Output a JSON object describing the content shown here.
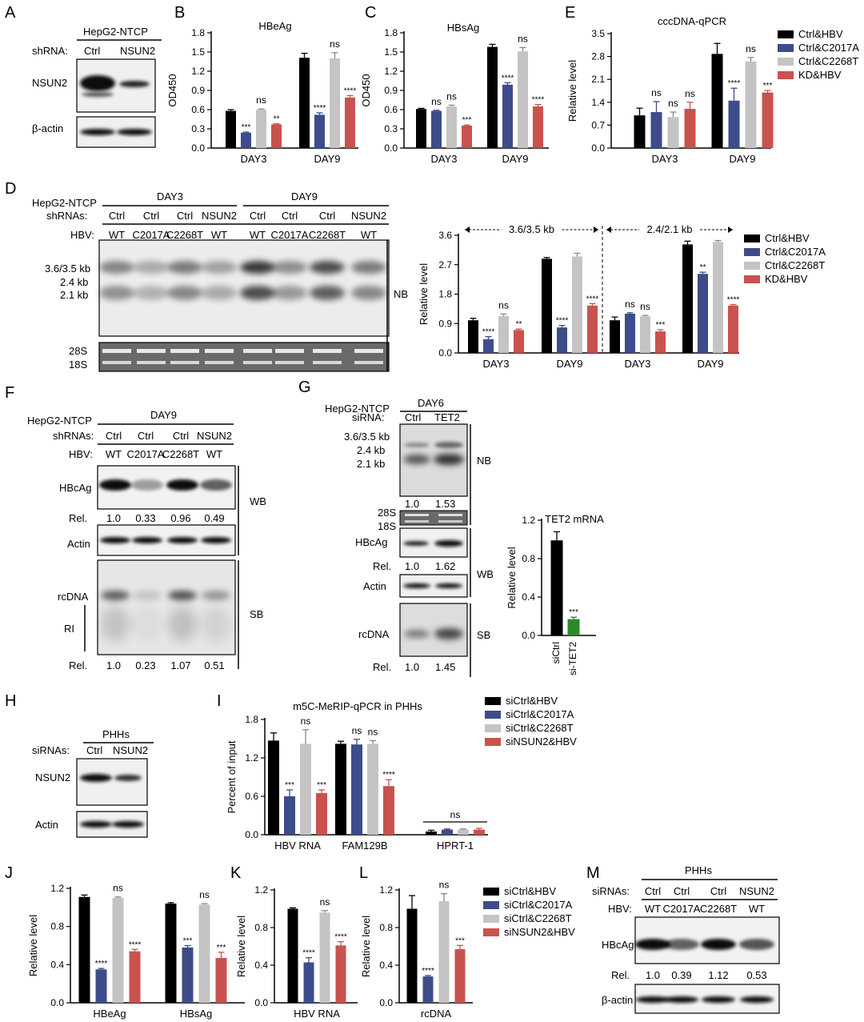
{
  "colors": {
    "black": "#000000",
    "blue": "#3d4c8a",
    "gray": "#c4c4c4",
    "red": "#c9524e",
    "green": "#2a8a2a"
  },
  "panels": {
    "A": {
      "letter": "A",
      "cell_line": "HepG2-NTCP",
      "row_label": "shRNA:",
      "lanes": [
        "Ctrl",
        "NSUN2"
      ],
      "bands": [
        "NSUN2",
        "β-actin"
      ]
    },
    "D": {
      "letter": "D",
      "cell_line": "HepG2-NTCP",
      "row1_label": "shRNAs:",
      "row2_label": "HBV:",
      "days": [
        "DAY3",
        "DAY9"
      ],
      "shrna": [
        "Ctrl",
        "Ctrl",
        "Ctrl",
        "NSUN2",
        "Ctrl",
        "Ctrl",
        "Ctrl",
        "NSUN2"
      ],
      "hbv": [
        "WT",
        "C2017A",
        "C2268T",
        "WT",
        "WT",
        "C2017A",
        "C2268T",
        "WT"
      ],
      "band_labels": [
        "3.6/3.5 kb",
        "2.4 kb",
        "2.1 kb"
      ],
      "rrna": [
        "28S",
        "18S"
      ],
      "method": "NB"
    },
    "F": {
      "letter": "F",
      "cell_line": "HepG2-NTCP",
      "day": "DAY9",
      "row1_label": "shRNAs:",
      "row2_label": "HBV:",
      "shrna": [
        "Ctrl",
        "Ctrl",
        "Ctrl",
        "NSUN2"
      ],
      "hbv": [
        "WT",
        "C2017A",
        "C2268T",
        "WT"
      ],
      "hbcag": "HBcAg",
      "actin": "Actin",
      "rcdna": "rcDNA",
      "ri": "RI",
      "rel_label": "Rel.",
      "rel_wb": [
        "1.0",
        "0.33",
        "0.96",
        "0.49"
      ],
      "rel_sb": [
        "1.0",
        "0.23",
        "1.07",
        "0.51"
      ],
      "wb": "WB",
      "sb": "SB"
    },
    "G": {
      "letter": "G",
      "cell_line": "HepG2-NTCP",
      "day": "DAY6",
      "row_label": "siRNA:",
      "lanes": [
        "Ctrl",
        "TET2"
      ],
      "band_labels": [
        "3.6/3.5 kb",
        "2.4 kb",
        "2.1 kb"
      ],
      "nb": "NB",
      "rel_nb": [
        "1.0",
        "1.53"
      ],
      "rrna": [
        "28S",
        "18S"
      ],
      "hbcag": "HBcAg",
      "rel_label": "Rel.",
      "rel_wb": [
        "1.0",
        "1.62"
      ],
      "wb": "WB",
      "actin": "Actin",
      "rcdna": "rcDNA",
      "sb": "SB",
      "rel_sb": [
        "1.0",
        "1.45"
      ]
    },
    "H": {
      "letter": "H",
      "cell_line": "PHHs",
      "row_label": "siRNAs:",
      "lanes": [
        "Ctrl",
        "NSUN2"
      ],
      "bands": [
        "NSUN2",
        "Actin"
      ]
    },
    "M": {
      "letter": "M",
      "cell_line": "PHHs",
      "row1_label": "siRNAs:",
      "row2_label": "HBV:",
      "sirna": [
        "Ctrl",
        "Ctrl",
        "Ctrl",
        "NSUN2"
      ],
      "hbv": [
        "WT",
        "C2017A",
        "C2268T",
        "WT"
      ],
      "hbcag": "HBcAg",
      "rel_label": "Rel.",
      "rel": [
        "1.0",
        "0.39",
        "1.12",
        "0.53"
      ],
      "actin": "β-actin"
    }
  },
  "legends": {
    "shrna": [
      "Ctrl&HBV",
      "Ctrl&C2017A",
      "Ctrl&C2268T",
      "KD&HBV"
    ],
    "sirna": [
      "siCtrl&HBV",
      "siCtrl&C2017A",
      "siCtrl&C2268T",
      "siNSUN2&HBV"
    ]
  },
  "chart_data": [
    {
      "id": "B",
      "type": "bar",
      "title": "HBeAg",
      "ylabel": "OD450",
      "xlabel": "",
      "ylim": [
        0,
        1.8
      ],
      "yticks": [
        "0.0",
        "0.3",
        "0.6",
        "0.9",
        "1.2",
        "1.5",
        "1.8"
      ],
      "categories": [
        "DAY3",
        "DAY9"
      ],
      "series": [
        {
          "values": [
            0.58,
            1.41
          ],
          "errors": [
            0.02,
            0.07
          ],
          "sig": [
            "",
            ""
          ]
        },
        {
          "values": [
            0.24,
            0.52
          ],
          "errors": [
            0.01,
            0.03
          ],
          "sig": [
            "***",
            "****"
          ]
        },
        {
          "values": [
            0.6,
            1.4
          ],
          "errors": [
            0.01,
            0.09
          ],
          "sig": [
            "ns",
            "ns"
          ]
        },
        {
          "values": [
            0.37,
            0.79
          ],
          "errors": [
            0.01,
            0.03
          ],
          "sig": [
            "**",
            "****"
          ]
        }
      ]
    },
    {
      "id": "C",
      "type": "bar",
      "title": "HBsAg",
      "ylabel": "OD450",
      "xlabel": "",
      "ylim": [
        0,
        1.8
      ],
      "yticks": [
        "0.0",
        "0.3",
        "0.6",
        "0.9",
        "1.2",
        "1.5",
        "1.8"
      ],
      "categories": [
        "DAY3",
        "DAY9"
      ],
      "series": [
        {
          "values": [
            0.61,
            1.58
          ],
          "errors": [
            0.01,
            0.04
          ],
          "sig": [
            "",
            ""
          ]
        },
        {
          "values": [
            0.58,
            0.99
          ],
          "errors": [
            0.01,
            0.03
          ],
          "sig": [
            "ns",
            "****"
          ]
        },
        {
          "values": [
            0.65,
            1.51
          ],
          "errors": [
            0.02,
            0.06
          ],
          "sig": [
            "ns",
            "ns"
          ]
        },
        {
          "values": [
            0.35,
            0.65
          ],
          "errors": [
            0.01,
            0.03
          ],
          "sig": [
            "***",
            "****"
          ]
        }
      ]
    },
    {
      "id": "E",
      "type": "bar",
      "title": "cccDNA-qPCR",
      "ylabel": "Relative level",
      "xlabel": "",
      "ylim": [
        0,
        3.5
      ],
      "yticks": [
        "0.0",
        "0.7",
        "1.4",
        "2.1",
        "2.8",
        "3.5"
      ],
      "categories": [
        "DAY3",
        "DAY9"
      ],
      "series": [
        {
          "values": [
            1.0,
            2.88
          ],
          "errors": [
            0.22,
            0.32
          ],
          "sig": [
            "",
            ""
          ]
        },
        {
          "values": [
            1.1,
            1.45
          ],
          "errors": [
            0.32,
            0.38
          ],
          "sig": [
            "ns",
            "****"
          ]
        },
        {
          "values": [
            0.95,
            2.65
          ],
          "errors": [
            0.15,
            0.12
          ],
          "sig": [
            "ns",
            "ns"
          ]
        },
        {
          "values": [
            1.2,
            1.7
          ],
          "errors": [
            0.2,
            0.06
          ],
          "sig": [
            "ns",
            "***"
          ]
        }
      ]
    },
    {
      "id": "D",
      "type": "bar",
      "title": "",
      "ylabel": "Relative level",
      "xlabel": "",
      "ylim": [
        0,
        3.6
      ],
      "yticks": [
        "0.0",
        "0.9",
        "1.8",
        "2.7",
        "3.6"
      ],
      "categories": [
        "DAY3",
        "DAY9",
        "DAY3",
        "DAY9"
      ],
      "group_headers": [
        "3.6/3.5 kb",
        "2.4/2.1 kb"
      ],
      "series": [
        {
          "values": [
            1.0,
            2.88,
            1.0,
            3.32
          ],
          "errors": [
            0.06,
            0.04,
            0.1,
            0.1
          ],
          "sig": [
            "",
            "",
            "",
            ""
          ]
        },
        {
          "values": [
            0.42,
            0.78,
            1.2,
            2.42
          ],
          "errors": [
            0.08,
            0.06,
            0.03,
            0.05
          ],
          "sig": [
            "****",
            "****",
            "ns",
            "**"
          ]
        },
        {
          "values": [
            1.13,
            2.95,
            1.12,
            3.4
          ],
          "errors": [
            0.06,
            0.1,
            0.03,
            0.04
          ],
          "sig": [
            "ns",
            "",
            "ns",
            ""
          ]
        },
        {
          "values": [
            0.7,
            1.45,
            0.66,
            1.45
          ],
          "errors": [
            0.03,
            0.06,
            0.05,
            0.03
          ],
          "sig": [
            "**",
            "****",
            "***",
            "****"
          ]
        }
      ]
    },
    {
      "id": "G",
      "type": "bar",
      "title": "TET2 mRNA",
      "ylabel": "Relative level",
      "xlabel": "",
      "ylim": [
        0,
        1.2
      ],
      "yticks": [
        "0.0",
        "0.4",
        "0.8",
        "1.2"
      ],
      "categories": [
        "siCtrl",
        "si-TET2"
      ],
      "series": [
        {
          "values": [
            0.99,
            0.17
          ],
          "errors": [
            0.09,
            0.02
          ],
          "sig": [
            "",
            "***"
          ]
        }
      ]
    },
    {
      "id": "I",
      "type": "bar",
      "title": "m5C-MeRIP-qPCR in PHHs",
      "ylabel": "Percent of input",
      "xlabel": "",
      "ylim": [
        0,
        1.8
      ],
      "yticks": [
        "0.0",
        "0.6",
        "1.2",
        "1.8"
      ],
      "categories": [
        "HBV RNA",
        "FAM129B",
        "HPRT-1"
      ],
      "series": [
        {
          "values": [
            1.47,
            1.42,
            0.05
          ],
          "errors": [
            0.12,
            0.04,
            0.02
          ],
          "sig": [
            "",
            "",
            ""
          ]
        },
        {
          "values": [
            0.6,
            1.41,
            0.08
          ],
          "errors": [
            0.1,
            0.08,
            0.01
          ],
          "sig": [
            "***",
            "ns",
            ""
          ]
        },
        {
          "values": [
            1.42,
            1.42,
            0.08
          ],
          "errors": [
            0.22,
            0.05,
            0.01
          ],
          "sig": [
            "ns",
            "ns",
            ""
          ]
        },
        {
          "values": [
            0.65,
            0.76,
            0.08
          ],
          "errors": [
            0.05,
            0.1,
            0.02
          ],
          "sig": [
            "***",
            "****",
            ""
          ]
        }
      ],
      "group_sig": [
        "",
        "",
        "ns"
      ]
    },
    {
      "id": "J",
      "type": "bar",
      "title": "",
      "ylabel": "Relative level",
      "xlabel": "",
      "ylim": [
        0,
        1.2
      ],
      "yticks": [
        "0.0",
        "0.4",
        "0.8",
        "1.2"
      ],
      "categories": [
        "HBeAg",
        "HBsAg"
      ],
      "series": [
        {
          "values": [
            1.11,
            1.04
          ],
          "errors": [
            0.02,
            0.01
          ],
          "sig": [
            "",
            ""
          ]
        },
        {
          "values": [
            0.35,
            0.58
          ],
          "errors": [
            0.01,
            0.02
          ],
          "sig": [
            "****",
            "***"
          ]
        },
        {
          "values": [
            1.1,
            1.03
          ],
          "errors": [
            0.01,
            0.01
          ],
          "sig": [
            "ns",
            "ns"
          ]
        },
        {
          "values": [
            0.54,
            0.47
          ],
          "errors": [
            0.02,
            0.06
          ],
          "sig": [
            "****",
            "***"
          ]
        }
      ]
    },
    {
      "id": "K",
      "type": "bar",
      "title": "",
      "ylabel": "Relative level",
      "xlabel": "",
      "ylim": [
        0,
        1.2
      ],
      "yticks": [
        "0.0",
        "0.4",
        "0.8",
        "1.2"
      ],
      "categories": [
        "HBV RNA"
      ],
      "series": [
        {
          "values": [
            1.0
          ],
          "errors": [
            0.01
          ],
          "sig": [
            ""
          ]
        },
        {
          "values": [
            0.43
          ],
          "errors": [
            0.05
          ],
          "sig": [
            "****"
          ]
        },
        {
          "values": [
            0.96
          ],
          "errors": [
            0.02
          ],
          "sig": [
            "ns"
          ]
        },
        {
          "values": [
            0.61
          ],
          "errors": [
            0.04
          ],
          "sig": [
            "****"
          ]
        }
      ]
    },
    {
      "id": "L",
      "type": "bar",
      "title": "",
      "ylabel": "Relative level",
      "xlabel": "",
      "ylim": [
        0,
        1.2
      ],
      "yticks": [
        "0.0",
        "0.4",
        "0.8",
        "1.2"
      ],
      "categories": [
        "rcDNA"
      ],
      "series": [
        {
          "values": [
            1.0
          ],
          "errors": [
            0.14
          ],
          "sig": [
            ""
          ]
        },
        {
          "values": [
            0.28
          ],
          "errors": [
            0.01
          ],
          "sig": [
            "****"
          ]
        },
        {
          "values": [
            1.08
          ],
          "errors": [
            0.08
          ],
          "sig": [
            "ns"
          ]
        },
        {
          "values": [
            0.57
          ],
          "errors": [
            0.04
          ],
          "sig": [
            "***"
          ]
        }
      ]
    }
  ]
}
